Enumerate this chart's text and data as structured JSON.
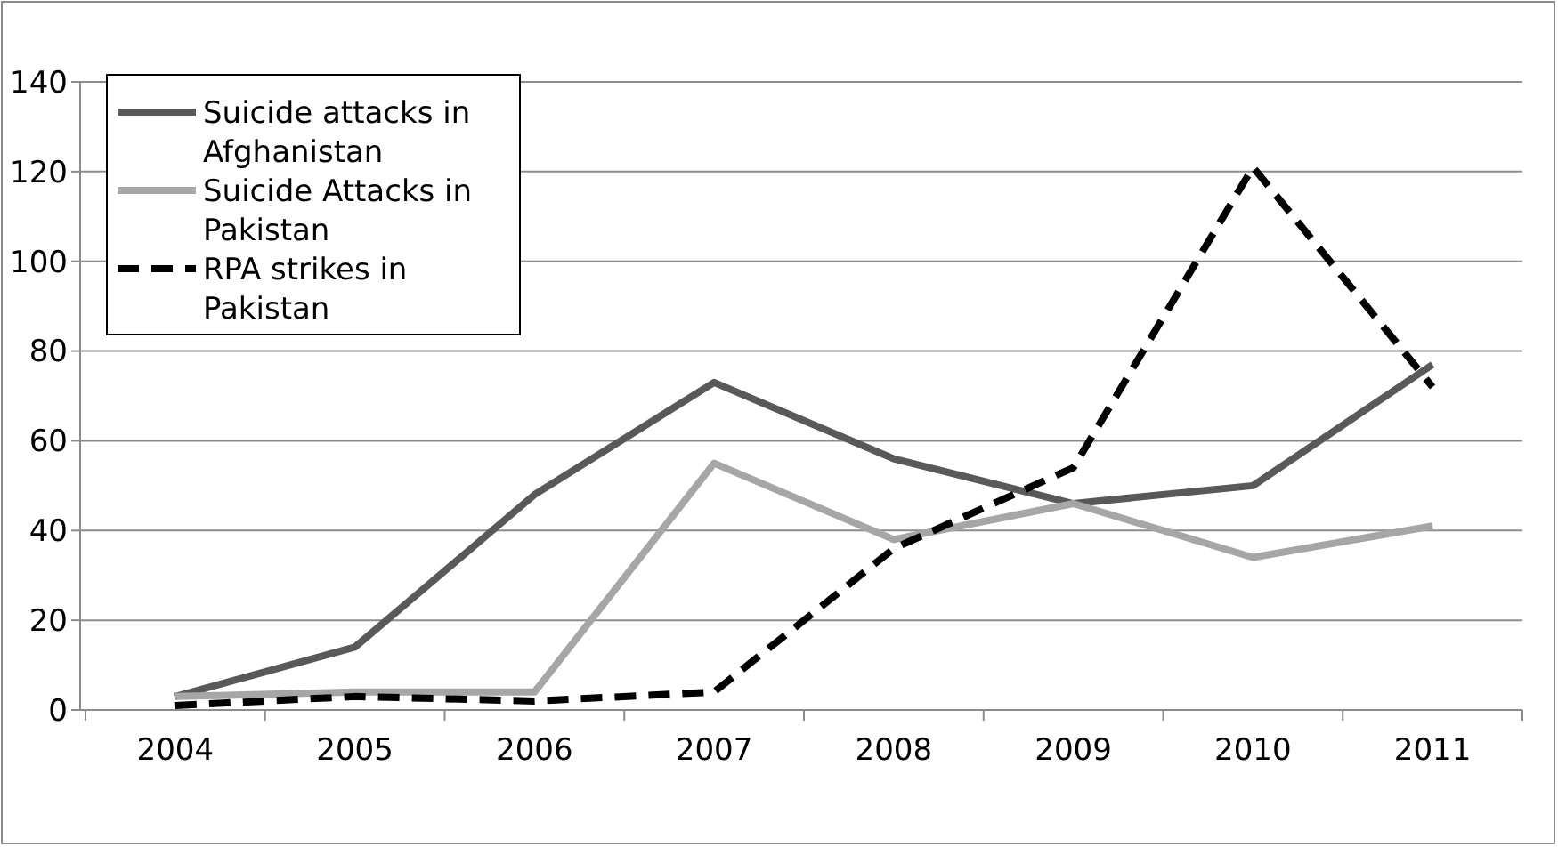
{
  "chart_data": {
    "type": "line",
    "categories": [
      "2004",
      "2005",
      "2006",
      "2007",
      "2008",
      "2009",
      "2010",
      "2011"
    ],
    "series": [
      {
        "name": "Suicide attacks in Afghanistan",
        "color": "#595959",
        "line_style": "solid",
        "values": [
          3,
          14,
          48,
          73,
          56,
          46,
          50,
          77
        ]
      },
      {
        "name": "Suicide Attacks in Pakistan",
        "color": "#a6a6a6",
        "line_style": "solid",
        "values": [
          3,
          4,
          4,
          55,
          38,
          46,
          34,
          41
        ]
      },
      {
        "name": "RPA strikes in Pakistan",
        "color": "#000000",
        "line_style": "dashed",
        "values": [
          1,
          3,
          2,
          4,
          36,
          54,
          121,
          72
        ]
      }
    ],
    "ylim": [
      0,
      140
    ],
    "yticks": [
      0,
      20,
      40,
      60,
      80,
      100,
      120,
      140
    ],
    "grid": "y",
    "legend": "top left"
  }
}
